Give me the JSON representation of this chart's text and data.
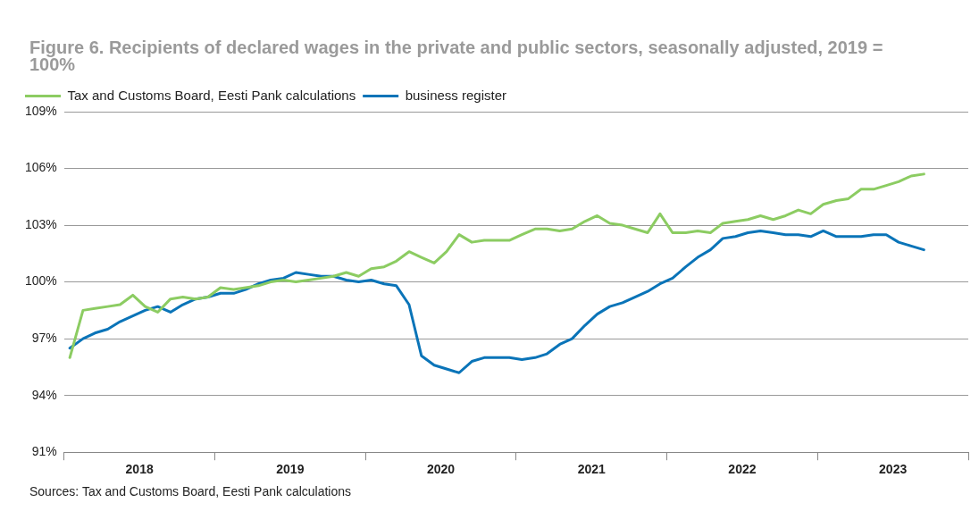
{
  "chart_data": {
    "type": "line",
    "title": "Figure 6. Recipients of declared wages in the private and public sectors, seasonally adjusted, 2019 = 100%",
    "annotations": [
      "Sources: Tax and Customs Board, Eesti Pank calculations"
    ],
    "x": [
      "2018-01-15",
      "2018-02-15",
      "2018-03-15",
      "2018-04-15",
      "2018-05-15",
      "2018-06-15",
      "2018-07-15",
      "2018-08-15",
      "2018-09-15",
      "2018-10-15",
      "2018-11-15",
      "2018-12-15",
      "2019-01-15",
      "2019-02-15",
      "2019-03-15",
      "2019-04-15",
      "2019-05-15",
      "2019-06-15",
      "2019-07-15",
      "2019-08-15",
      "2019-09-15",
      "2019-10-15",
      "2019-11-15",
      "2019-12-15",
      "2020-01-15",
      "2020-02-15",
      "2020-03-15",
      "2020-04-15",
      "2020-05-15",
      "2020-06-15",
      "2020-07-15",
      "2020-08-15",
      "2020-09-15",
      "2020-10-15",
      "2020-11-15",
      "2020-12-15",
      "2021-01-15",
      "2021-02-15",
      "2021-03-15",
      "2021-04-15",
      "2021-05-15",
      "2021-06-15",
      "2021-07-15",
      "2021-08-15",
      "2021-09-15",
      "2021-10-15",
      "2021-11-15",
      "2021-12-15",
      "2022-01-15",
      "2022-02-15",
      "2022-03-15",
      "2022-04-15",
      "2022-05-15",
      "2022-06-15",
      "2022-07-15",
      "2022-08-15",
      "2022-09-15",
      "2022-10-15",
      "2022-11-15",
      "2022-12-15",
      "2023-01-15",
      "2023-02-15",
      "2023-03-15",
      "2023-04-15",
      "2023-05-15",
      "2023-06-15",
      "2023-07-15",
      "2023-08-15",
      "2023-09-15"
    ],
    "series": [
      {
        "name": "Tax and Customs Board, Eesti Pank calculations",
        "color": "#8ccc62",
        "values": [
          96.0,
          98.5,
          98.6,
          98.7,
          98.8,
          99.3,
          98.7,
          98.4,
          99.1,
          99.2,
          99.1,
          99.2,
          99.7,
          99.6,
          99.7,
          99.8,
          100.0,
          100.1,
          100.0,
          100.1,
          100.2,
          100.3,
          100.5,
          100.3,
          100.7,
          100.8,
          101.1,
          101.6,
          101.3,
          101.0,
          101.6,
          102.5,
          102.1,
          102.2,
          102.2,
          102.2,
          102.5,
          102.8,
          102.8,
          102.7,
          102.8,
          103.2,
          103.5,
          103.1,
          103.0,
          102.8,
          102.6,
          103.6,
          102.6,
          102.6,
          102.7,
          102.6,
          103.1,
          103.2,
          103.3,
          103.5,
          103.3,
          103.5,
          103.8,
          103.6,
          104.1,
          104.3,
          104.4,
          104.9,
          104.9,
          105.1,
          105.3,
          105.6,
          105.7
        ]
      },
      {
        "name": "business register",
        "color": "#0a74b8",
        "values": [
          96.5,
          97.0,
          97.3,
          97.5,
          97.9,
          98.2,
          98.5,
          98.7,
          98.4,
          98.8,
          99.1,
          99.2,
          99.4,
          99.4,
          99.6,
          99.9,
          100.1,
          100.2,
          100.5,
          100.4,
          100.3,
          100.3,
          100.1,
          100.0,
          100.1,
          99.9,
          99.8,
          98.8,
          96.1,
          95.6,
          95.4,
          95.2,
          95.8,
          96.0,
          96.0,
          96.0,
          95.9,
          96.0,
          96.2,
          96.7,
          97.0,
          97.7,
          98.3,
          98.7,
          98.9,
          99.2,
          99.5,
          99.9,
          100.2,
          100.8,
          101.3,
          101.7,
          102.3,
          102.4,
          102.6,
          102.7,
          102.6,
          102.5,
          102.5,
          102.4,
          102.7,
          102.4,
          102.4,
          102.4,
          102.5,
          102.5,
          102.1,
          101.9,
          101.7
        ]
      }
    ],
    "xlim": [
      "2018-01-01",
      "2024-01-01"
    ],
    "xticks": [
      {
        "value": "2018-01-01",
        "label": null
      },
      {
        "value": "2018-07-01",
        "label": "2018"
      },
      {
        "value": "2019-01-01",
        "label": null
      },
      {
        "value": "2019-07-01",
        "label": "2019"
      },
      {
        "value": "2020-01-01",
        "label": null
      },
      {
        "value": "2020-07-01",
        "label": "2020"
      },
      {
        "value": "2021-01-01",
        "label": null
      },
      {
        "value": "2021-07-01",
        "label": "2021"
      },
      {
        "value": "2022-01-01",
        "label": null
      },
      {
        "value": "2022-07-01",
        "label": "2022"
      },
      {
        "value": "2023-01-01",
        "label": null
      },
      {
        "value": "2023-07-01",
        "label": "2023"
      },
      {
        "value": "2024-01-01",
        "label": null
      }
    ],
    "ylim": [
      91,
      109
    ],
    "yticks": [
      {
        "value": 91,
        "label": "91%"
      },
      {
        "value": 94,
        "label": "94%"
      },
      {
        "value": 97,
        "label": "97%"
      },
      {
        "value": 100,
        "label": "100%"
      },
      {
        "value": 103,
        "label": "103%"
      },
      {
        "value": 106,
        "label": "106%"
      },
      {
        "value": 109,
        "label": "109%"
      }
    ],
    "grid": "y",
    "legend": "top left",
    "marker": "none",
    "line_style": "solid"
  }
}
